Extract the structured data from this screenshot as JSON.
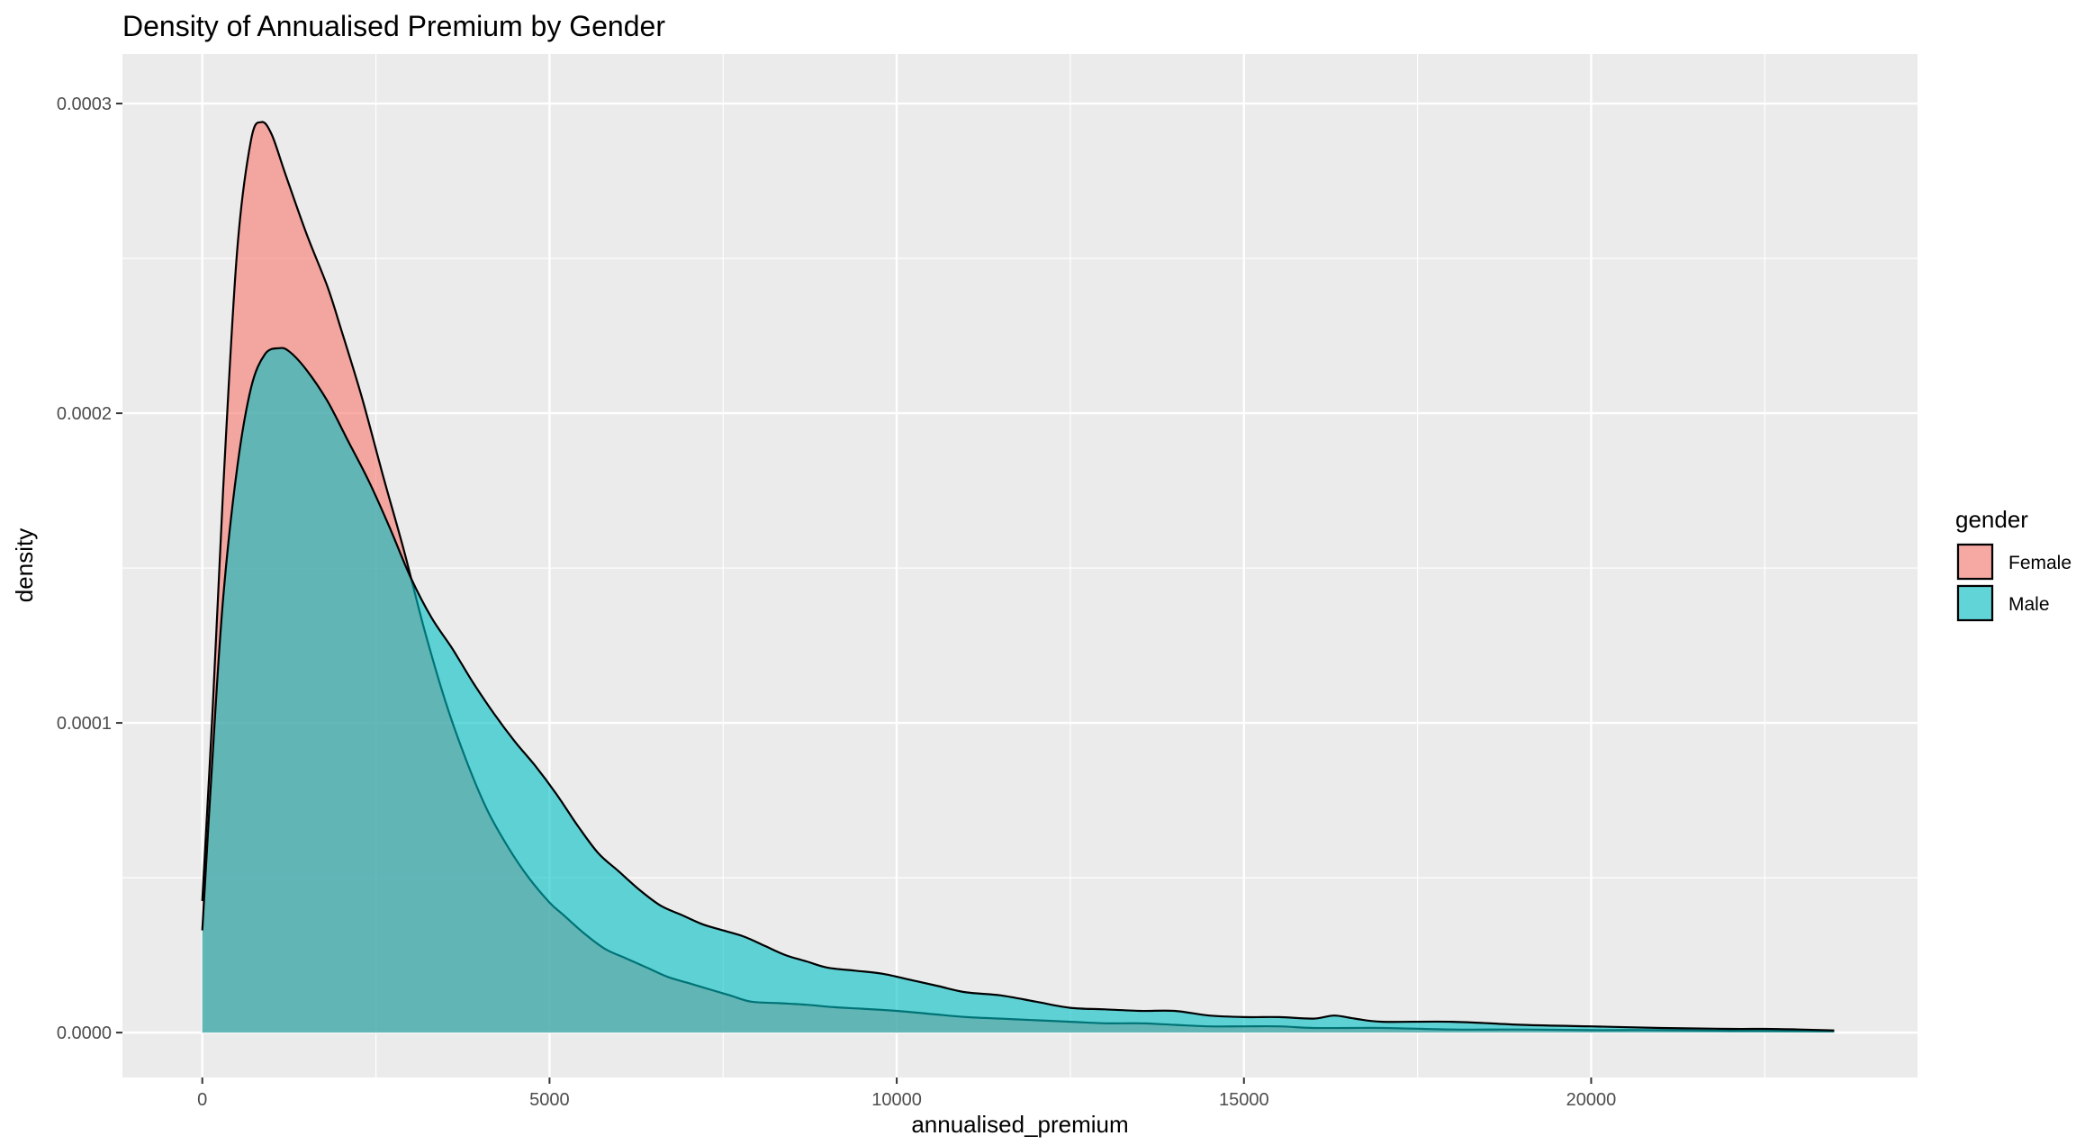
{
  "chart_data": {
    "type": "area",
    "title": "Density of Annualised Premium by Gender",
    "xlabel": "annualised_premium",
    "ylabel": "density",
    "xlim": [
      -1150,
      24700
    ],
    "ylim": [
      -1.45e-05,
      0.000316
    ],
    "x_ticks": [
      0,
      5000,
      10000,
      15000,
      20000
    ],
    "x_tick_labels": [
      "0",
      "5000",
      "10000",
      "15000",
      "20000"
    ],
    "y_ticks": [
      0,
      0.0001,
      0.0002,
      0.0003
    ],
    "y_tick_labels": [
      "0.0000",
      "0.0001",
      "0.0002",
      "0.0003"
    ],
    "grid": true,
    "legend": {
      "title": "gender",
      "position": "right"
    },
    "series": [
      {
        "name": "Female",
        "color": "#F8766D",
        "x": [
          0,
          150,
          300,
          500,
          700,
          850,
          1000,
          1200,
          1500,
          1800,
          2000,
          2300,
          2600,
          2900,
          3200,
          3500,
          3800,
          4100,
          4400,
          4700,
          5000,
          5200,
          5500,
          5800,
          6100,
          6400,
          6700,
          7000,
          7300,
          7600,
          7900,
          8300,
          8700,
          9100,
          9500,
          10000,
          10500,
          11000,
          11500,
          12000,
          12500,
          13000,
          13500,
          14000,
          14500,
          15000,
          15500,
          16000,
          16500,
          17000,
          18000,
          19000,
          20000,
          21000,
          22000,
          23000,
          23500
        ],
        "y": [
          4.25e-05,
          0.000105,
          0.000175,
          0.000252,
          0.000288,
          0.000294,
          0.00029,
          0.000277,
          0.000258,
          0.000241,
          0.000227,
          0.000205,
          0.00018,
          0.000156,
          0.00013,
          0.000107,
          8.8e-05,
          7.2e-05,
          6e-05,
          5e-05,
          4.2e-05,
          3.8e-05,
          3.2e-05,
          2.7e-05,
          2.4e-05,
          2.1e-05,
          1.8e-05,
          1.6e-05,
          1.4e-05,
          1.2e-05,
          1e-05,
          9.5e-06,
          9e-06,
          8.2e-06,
          7.7e-06,
          7e-06,
          6e-06,
          5e-06,
          4.5e-06,
          4e-06,
          3.5e-06,
          3e-06,
          3e-06,
          2.5e-06,
          2e-06,
          2e-06,
          2e-06,
          1.5e-06,
          1.5e-06,
          1.5e-06,
          1e-06,
          1e-06,
          8e-07,
          8e-07,
          6e-07,
          5e-07,
          4e-07
        ]
      },
      {
        "name": "Male",
        "color": "#00BFC4",
        "x": [
          0,
          150,
          300,
          500,
          700,
          900,
          1100,
          1250,
          1500,
          1800,
          2100,
          2400,
          2700,
          3000,
          3300,
          3600,
          3900,
          4200,
          4500,
          4800,
          5100,
          5400,
          5700,
          6000,
          6300,
          6600,
          6900,
          7200,
          7500,
          7800,
          8100,
          8400,
          8700,
          9000,
          9400,
          9800,
          10200,
          10600,
          11000,
          11500,
          12000,
          12500,
          13000,
          13500,
          14000,
          14500,
          15000,
          15500,
          16000,
          16300,
          16600,
          17000,
          18000,
          19000,
          20000,
          21000,
          22000,
          22500,
          23000,
          23500
        ],
        "y": [
          3.3e-05,
          9e-05,
          0.00014,
          0.000182,
          0.000208,
          0.000219,
          0.000221,
          0.00022,
          0.000214,
          0.000204,
          0.000191,
          0.000178,
          0.000163,
          0.000147,
          0.000134,
          0.000124,
          0.000113,
          0.000103,
          9.4e-05,
          8.6e-05,
          7.7e-05,
          6.7e-05,
          5.8e-05,
          5.2e-05,
          4.6e-05,
          4.1e-05,
          3.8e-05,
          3.5e-05,
          3.3e-05,
          3.1e-05,
          2.8e-05,
          2.5e-05,
          2.3e-05,
          2.1e-05,
          2e-05,
          1.9e-05,
          1.7e-05,
          1.5e-05,
          1.3e-05,
          1.2e-05,
          1e-05,
          8e-06,
          7.5e-06,
          7e-06,
          7e-06,
          5.5e-06,
          5e-06,
          5e-06,
          4.5e-06,
          5.5e-06,
          4.5e-06,
          3.5e-06,
          3.5e-06,
          2.5e-06,
          2e-06,
          1.5e-06,
          1.2e-06,
          1.2e-06,
          1e-06,
          7e-07
        ]
      }
    ]
  }
}
